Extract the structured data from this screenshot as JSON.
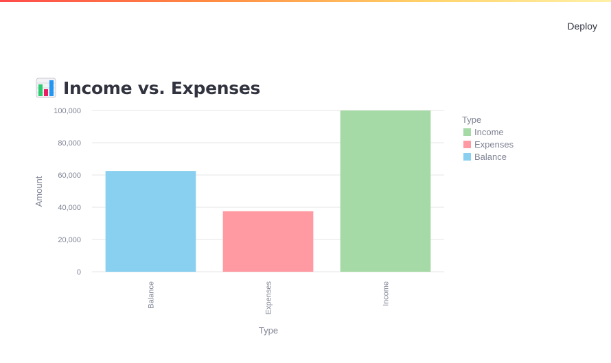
{
  "header": {
    "deploy_label": "Deploy"
  },
  "page": {
    "title": "Income vs. Expenses",
    "title_icon": "bar-chart-icon"
  },
  "colors": {
    "Income": "#a5d9a5",
    "Expenses": "#ff9aa2",
    "Balance": "#89cff0",
    "grid": "#e6e6e6",
    "axis_text": "#808495",
    "title_text": "#31333f"
  },
  "chart_data": {
    "type": "bar",
    "categories": [
      "Balance",
      "Expenses",
      "Income"
    ],
    "values": [
      62500,
      37500,
      100000
    ],
    "xlabel": "Type",
    "ylabel": "Amount",
    "ylim": [
      0,
      100000
    ],
    "yticks": [
      0,
      20000,
      40000,
      60000,
      80000,
      100000
    ],
    "ytick_labels": [
      "0",
      "20,000",
      "40,000",
      "60,000",
      "80,000",
      "100,000"
    ],
    "grid": true,
    "legend": {
      "title": "Type",
      "placement": "right",
      "entries": [
        "Income",
        "Expenses",
        "Balance"
      ]
    }
  }
}
